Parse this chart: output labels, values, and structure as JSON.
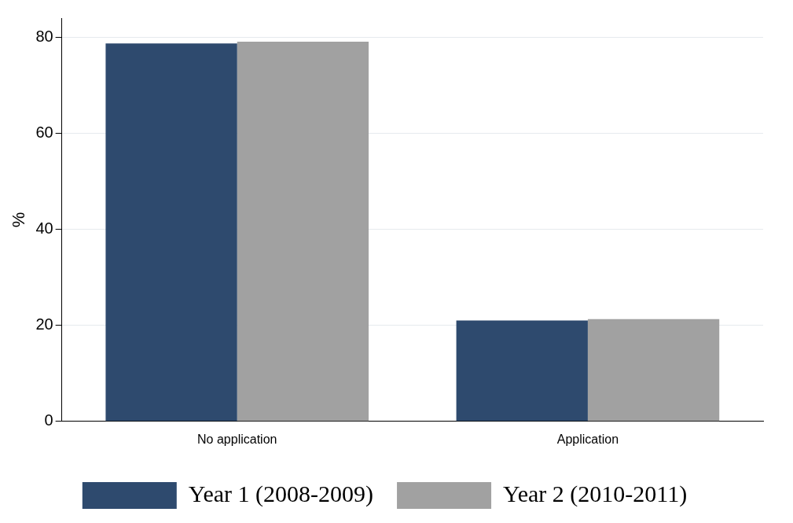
{
  "chart_data": {
    "type": "bar",
    "categories": [
      "No application",
      "Application"
    ],
    "series": [
      {
        "name": "Year 1 (2008-2009)",
        "color": "#2e4a6e",
        "values": [
          78.7,
          21.0
        ]
      },
      {
        "name": "Year 2 (2010-2011)",
        "color": "#a1a1a1",
        "values": [
          79.1,
          21.3
        ]
      }
    ],
    "ylabel": "%",
    "ylim": [
      0,
      84
    ],
    "yticks": [
      0,
      20,
      40,
      60,
      80
    ],
    "grid": "y",
    "legend": "bottom"
  }
}
